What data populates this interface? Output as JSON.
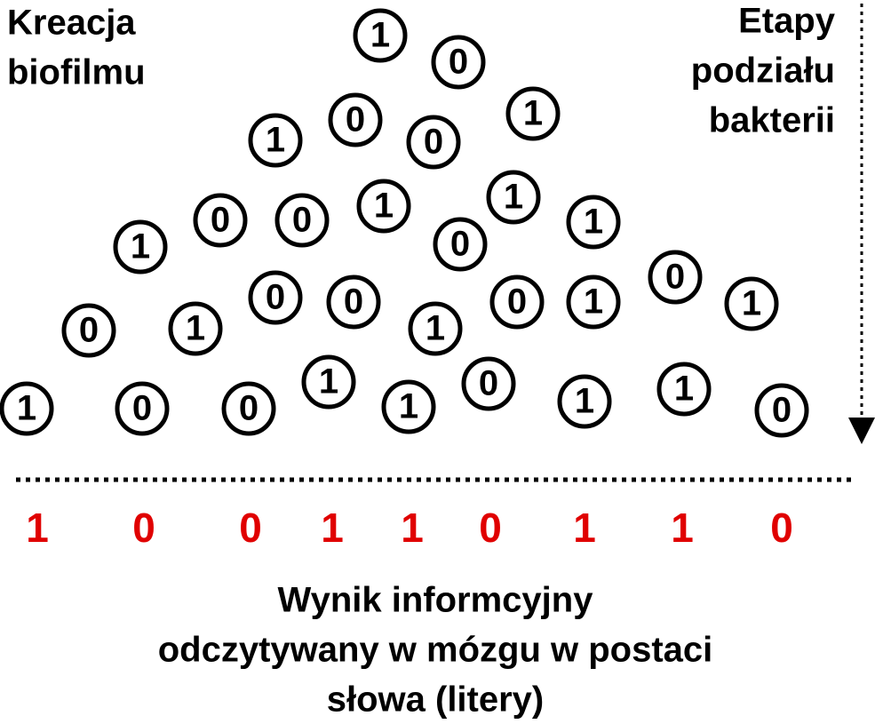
{
  "top_left_label": [
    "Kreacja",
    "biofilmu"
  ],
  "top_right_label": [
    "Etapy",
    "podziału",
    "bakterii"
  ],
  "bubbles": [
    "1",
    "0",
    "0",
    "1",
    "1",
    "0",
    "0",
    "0",
    "1",
    "1",
    "1",
    "1",
    "0",
    "0",
    "0",
    "0",
    "0",
    "1",
    "1",
    "0",
    "1",
    "1",
    "1",
    "0",
    "1",
    "0",
    "0",
    "1",
    "1",
    "1",
    "0"
  ],
  "result": [
    "1",
    "0",
    "0",
    "1",
    "1",
    "0",
    "1",
    "1",
    "0"
  ],
  "caption": [
    "Wynik informcyjny",
    "odczytywany w mózgu w postaci",
    "słowa (litery)"
  ]
}
